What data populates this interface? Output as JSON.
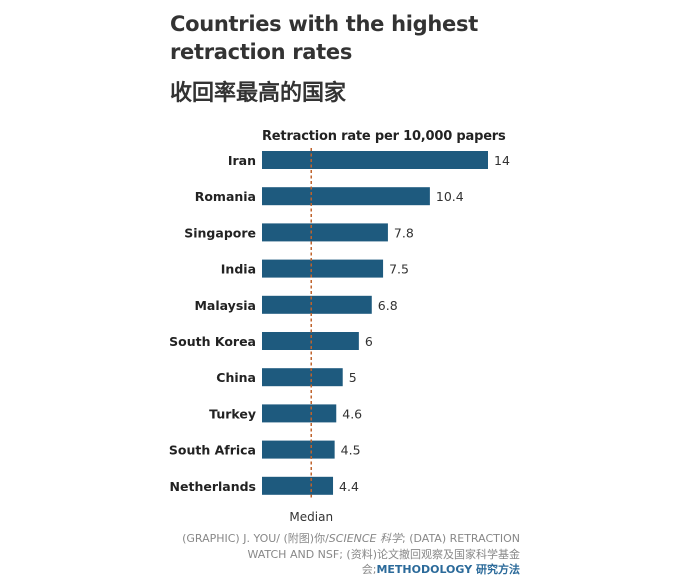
{
  "chart_data": {
    "type": "bar",
    "orientation": "horizontal",
    "title": "Countries with the highest retraction rates",
    "title_zh": "收回率最高的国家",
    "subtitle": "Retraction rate per 10,000 papers",
    "categories": [
      "Iran",
      "Romania",
      "Singapore",
      "India",
      "Malaysia",
      "South Korea",
      "China",
      "Turkey",
      "South Africa",
      "Netherlands"
    ],
    "values": [
      14,
      10.4,
      7.8,
      7.5,
      6.8,
      6,
      5,
      4.6,
      4.5,
      4.4
    ],
    "value_labels": [
      "14",
      "10.4",
      "7.8",
      "7.5",
      "6.8",
      "6",
      "5",
      "4.6",
      "4.5",
      "4.4"
    ],
    "median": 3.05,
    "median_label": "Median",
    "bar_color": "#1e5a7e",
    "median_color": "#c0622b",
    "xlim": [
      0,
      14
    ]
  },
  "source": {
    "line1_prefix": "(GRAPHIC) J. YOU/ (附图)你/",
    "line1_italic": "SCIENCE 科学",
    "line1_suffix": "; (DATA) RETRACTION",
    "line2": "WATCH AND NSF; (资料)论文撤回观察及国家科学基金",
    "line3_prefix": "会;",
    "line3_method": "METHODOLOGY 研究方法"
  }
}
